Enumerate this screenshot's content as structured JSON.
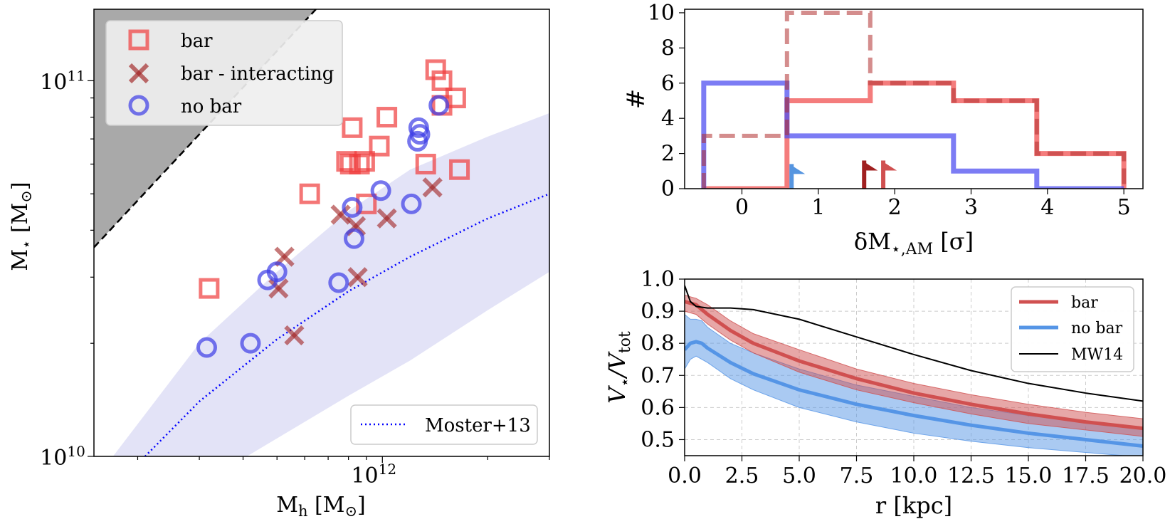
{
  "chart_data": [
    {
      "type": "scatter",
      "panel": "left",
      "xlabel": "M_h [M_⊙]",
      "ylabel": "M_⋆ [M_⊙]",
      "xscale": "log",
      "yscale": "log",
      "xlim": [
        150000000000.0,
        3000000000000.0
      ],
      "ylim": [
        10000000000.0,
        155000000000.0
      ],
      "x_ticks": [
        {
          "value": 1000000000000.0,
          "label": "10^12"
        }
      ],
      "y_ticks": [
        {
          "value": 10000000000.0,
          "label": "10^10"
        },
        {
          "value": 100000000000.0,
          "label": "10^11"
        }
      ],
      "legend_location": "upper-left",
      "series": [
        {
          "name": "bar",
          "marker": "square",
          "color": "#f03c3c",
          "points": [
            [
              320000000000.0,
              28000000000.0
            ],
            [
              620000000000.0,
              50000000000.0
            ],
            [
              790000000000.0,
              61000000000.0
            ],
            [
              810000000000.0,
              60000000000.0
            ],
            [
              820000000000.0,
              75000000000.0
            ],
            [
              860000000000.0,
              60000000000.0
            ],
            [
              890000000000.0,
              61000000000.0
            ],
            [
              900000000000.0,
              47000000000.0
            ],
            [
              980000000000.0,
              67000000000.0
            ],
            [
              1030000000000.0,
              80000000000.0
            ],
            [
              1330000000000.0,
              60000000000.0
            ],
            [
              1420000000000.0,
              107000000000.0
            ],
            [
              1480000000000.0,
              100000000000.0
            ],
            [
              1480000000000.0,
              86000000000.0
            ],
            [
              1620000000000.0,
              90000000000.0
            ],
            [
              1660000000000.0,
              58000000000.0
            ]
          ]
        },
        {
          "name": "bar - interacting",
          "marker": "x",
          "color": "#a02020",
          "points": [
            [
              525000000000.0,
              34000000000.0
            ],
            [
              505000000000.0,
              28000000000.0
            ],
            [
              560000000000.0,
              21000000000.0
            ],
            [
              760000000000.0,
              44000000000.0
            ],
            [
              840000000000.0,
              41000000000.0
            ],
            [
              850000000000.0,
              30000000000.0
            ],
            [
              1030000000000.0,
              43000000000.0
            ],
            [
              1390000000000.0,
              52000000000.0
            ]
          ]
        },
        {
          "name": "no bar",
          "marker": "circle",
          "color": "#3c3ce6",
          "points": [
            [
              315000000000.0,
              19500000000.0
            ],
            [
              420000000000.0,
              20000000000.0
            ],
            [
              470000000000.0,
              29500000000.0
            ],
            [
              500000000000.0,
              31000000000.0
            ],
            [
              750000000000.0,
              29000000000.0
            ],
            [
              830000000000.0,
              38000000000.0
            ],
            [
              820000000000.0,
              46000000000.0
            ],
            [
              990000000000.0,
              51000000000.0
            ],
            [
              1210000000000.0,
              47000000000.0
            ],
            [
              1260000000000.0,
              69000000000.0
            ],
            [
              1270000000000.0,
              75000000000.0
            ],
            [
              1280000000000.0,
              72000000000.0
            ],
            [
              1450000000000.0,
              86000000000.0
            ]
          ]
        }
      ],
      "reference_lines": [
        {
          "name": "Moster+13",
          "style": "dotted",
          "color": "#0000ff",
          "points": [
            [
              210000000000.0,
              10000000000.0
            ],
            [
              300000000000.0,
              14000000000.0
            ],
            [
              500000000000.0,
              20500000000.0
            ],
            [
              800000000000.0,
              27500000000.0
            ],
            [
              1200000000000.0,
              34000000000.0
            ],
            [
              2000000000000.0,
              43000000000.0
            ],
            [
              3000000000000.0,
              50000000000.0
            ]
          ],
          "band_lower": [
            [
              410000000000.0,
              10000000000.0
            ],
            [
              800000000000.0,
              14500000000.0
            ],
            [
              1200000000000.0,
              18000000000.0
            ],
            [
              2000000000000.0,
              24500000000.0
            ],
            [
              3000000000000.0,
              31000000000.0
            ]
          ],
          "band_upper": [
            [
              170000000000.0,
              10000000000.0
            ],
            [
              300000000000.0,
              20000000000.0
            ],
            [
              500000000000.0,
              31000000000.0
            ],
            [
              800000000000.0,
              45000000000.0
            ],
            [
              1200000000000.0,
              58000000000.0
            ],
            [
              2000000000000.0,
              71000000000.0
            ],
            [
              3000000000000.0,
              82000000000.0
            ]
          ]
        }
      ],
      "legends": {
        "markers": [
          {
            "label": "bar"
          },
          {
            "label": "bar - interacting"
          },
          {
            "label": "no bar"
          }
        ],
        "lines": [
          {
            "label": "Moster+13"
          }
        ]
      }
    },
    {
      "type": "histogram",
      "panel": "top-right",
      "xlabel": "δM_⋆,AM [σ]",
      "ylabel": "#",
      "xlim": [
        -0.75,
        5.25
      ],
      "ylim": [
        0,
        10.2
      ],
      "x_ticks": [
        "0",
        "1",
        "2",
        "3",
        "4",
        "5"
      ],
      "y_ticks": [
        "0",
        "2",
        "4",
        "6",
        "8",
        "10"
      ],
      "bin_edges": [
        -0.5,
        0.59,
        1.68,
        2.77,
        3.86,
        5.0
      ],
      "series": [
        {
          "name": "bar",
          "color": "#f05050",
          "style": "solid",
          "counts": [
            0,
            5,
            6,
            5,
            2
          ]
        },
        {
          "name": "bar - interacting",
          "color": "#b03030",
          "style": "dashed",
          "counts": [
            3,
            10,
            6,
            5,
            2
          ]
        },
        {
          "name": "no bar",
          "color": "#5050f0",
          "style": "solid",
          "counts": [
            6,
            3,
            3,
            1,
            0
          ]
        }
      ],
      "flags": [
        {
          "x": 0.65,
          "height": 1.4,
          "color": "#5595e0"
        },
        {
          "x": 1.6,
          "height": 1.6,
          "color": "#a02020"
        },
        {
          "x": 1.85,
          "height": 1.6,
          "color": "#d05050"
        }
      ]
    },
    {
      "type": "line",
      "panel": "bottom-right",
      "xlabel": "r [kpc]",
      "ylabel": "V_⋆/V_tot",
      "xlim": [
        0,
        20
      ],
      "ylim": [
        0.45,
        1.0
      ],
      "grid": true,
      "x_ticks": [
        "0.0",
        "2.5",
        "5.0",
        "7.5",
        "10.0",
        "12.5",
        "15.0",
        "17.5",
        "20.0"
      ],
      "y_ticks": [
        "0.5",
        "0.6",
        "0.7",
        "0.8",
        "0.9",
        "1.0"
      ],
      "legend_location": "top-right",
      "series": [
        {
          "name": "bar",
          "color": "#d05050",
          "x": [
            0,
            0.5,
            1,
            2,
            3,
            5,
            7.5,
            10,
            12.5,
            15,
            17.5,
            20
          ],
          "y": [
            0.93,
            0.92,
            0.89,
            0.84,
            0.8,
            0.745,
            0.69,
            0.645,
            0.61,
            0.58,
            0.555,
            0.535
          ],
          "band_lower": [
            0.9,
            0.89,
            0.86,
            0.81,
            0.77,
            0.71,
            0.655,
            0.615,
            0.58,
            0.55,
            0.53,
            0.51
          ],
          "band_upper": [
            0.95,
            0.94,
            0.92,
            0.87,
            0.83,
            0.78,
            0.72,
            0.675,
            0.64,
            0.61,
            0.585,
            0.565
          ]
        },
        {
          "name": "no bar",
          "color": "#5595e6",
          "x": [
            0,
            0.25,
            0.5,
            0.75,
            1,
            2,
            3,
            5,
            7.5,
            10,
            12.5,
            15,
            17.5,
            20
          ],
          "y": [
            0.78,
            0.8,
            0.805,
            0.8,
            0.785,
            0.74,
            0.705,
            0.655,
            0.61,
            0.575,
            0.545,
            0.52,
            0.5,
            0.48
          ],
          "band_lower": [
            0.72,
            0.75,
            0.76,
            0.75,
            0.74,
            0.69,
            0.655,
            0.6,
            0.555,
            0.52,
            0.495,
            0.475,
            0.46,
            0.445
          ],
          "band_upper": [
            0.89,
            0.875,
            0.875,
            0.87,
            0.85,
            0.8,
            0.77,
            0.72,
            0.67,
            0.635,
            0.6,
            0.575,
            0.555,
            0.535
          ]
        },
        {
          "name": "MW14",
          "color": "#000000",
          "x": [
            0,
            0.25,
            0.5,
            1,
            2,
            3,
            5,
            7.5,
            10,
            12.5,
            15,
            17.5,
            20
          ],
          "y": [
            0.98,
            0.93,
            0.915,
            0.91,
            0.91,
            0.905,
            0.875,
            0.82,
            0.765,
            0.715,
            0.675,
            0.645,
            0.62
          ]
        }
      ]
    }
  ]
}
